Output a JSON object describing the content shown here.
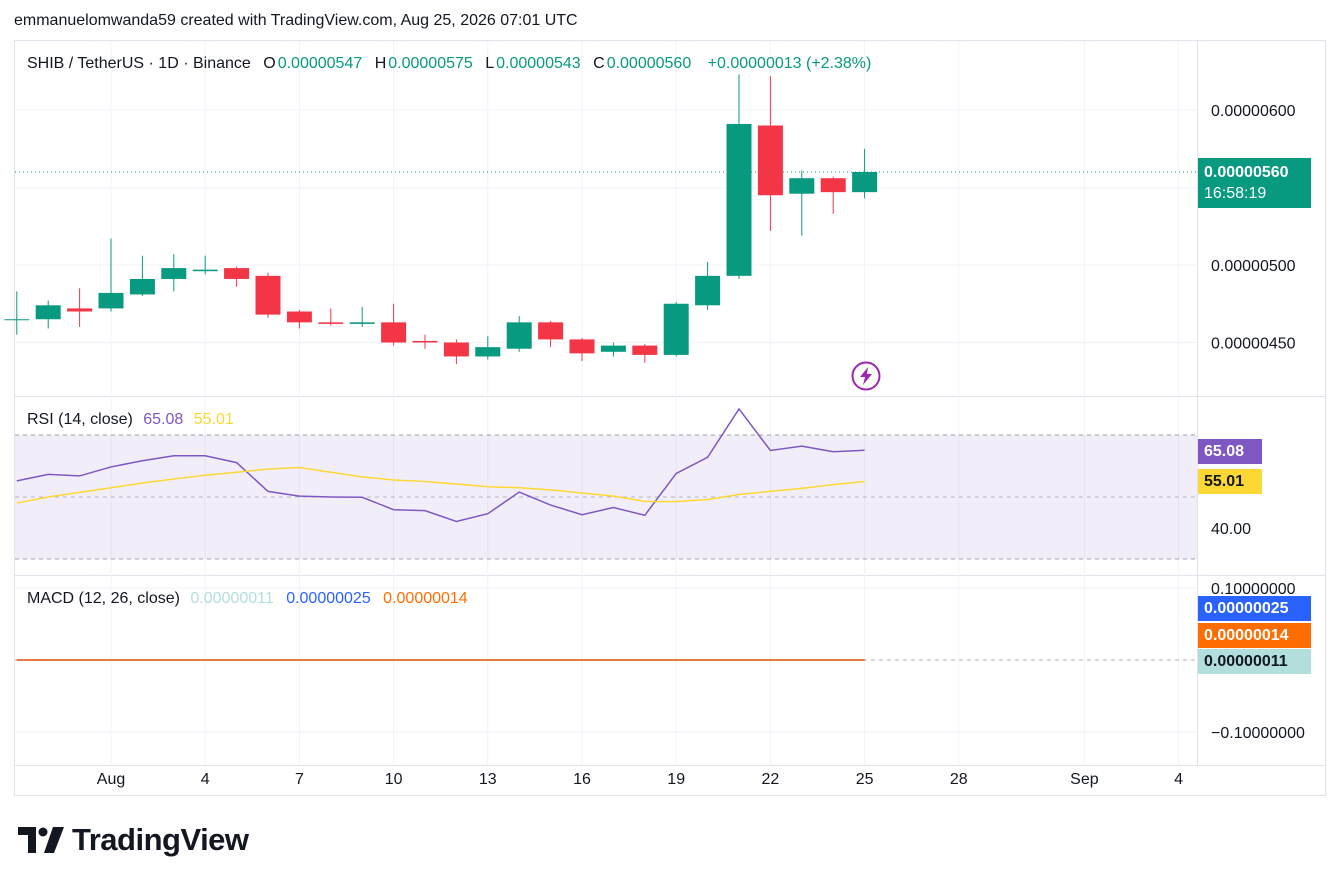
{
  "header": {
    "credit": "emmanuelomwanda59 created with TradingView.com, Aug 25, 2026 07:01 UTC"
  },
  "price_legend": {
    "symbol": "SHIB / TetherUS · 1D · Binance",
    "o_label": "O",
    "o": "0.00000547",
    "h_label": "H",
    "h": "0.00000575",
    "l_label": "L",
    "l": "0.00000543",
    "c_label": "C",
    "c": "0.00000560",
    "change": "+0.00000013 (+2.38%)"
  },
  "price_tag": {
    "value": "0.00000560",
    "countdown": "16:58:19"
  },
  "rsi_legend": {
    "title": "RSI (14, close)",
    "rsi": "65.08",
    "ma": "55.01"
  },
  "macd_legend": {
    "title": "MACD (12, 26, close)",
    "hist": "0.00000011",
    "macd": "0.00000025",
    "signal": "0.00000014"
  },
  "logo": {
    "text": "TradingView"
  },
  "colors": {
    "up": "#089981",
    "down": "#f23645",
    "rsi": "#7e57c2",
    "rsi_ma": "#fdd835",
    "macd": "#2962ff",
    "signal": "#ff6d00",
    "hist": "#b2dfdb",
    "lightning": "#9c27b0"
  },
  "chart_data": [
    {
      "type": "candlestick",
      "title": "SHIB / TetherUS · 1D · Binance",
      "x_ticks": [
        {
          "label": "Aug",
          "day": 1
        },
        {
          "label": "4",
          "day": 4
        },
        {
          "label": "7",
          "day": 7
        },
        {
          "label": "10",
          "day": 10
        },
        {
          "label": "13",
          "day": 13
        },
        {
          "label": "16",
          "day": 16
        },
        {
          "label": "19",
          "day": 19
        },
        {
          "label": "22",
          "day": 22
        },
        {
          "label": "25",
          "day": 25
        },
        {
          "label": "28",
          "day": 28
        },
        {
          "label": "Sep",
          "day": 32
        },
        {
          "label": "4",
          "day": 35
        }
      ],
      "y_ticks": [
        "0.00000600",
        "0.00000500",
        "0.00000450"
      ],
      "y_tick_values": [
        6e-06,
        5e-06,
        4.5e-06
      ],
      "ylim": [
        4.165e-06,
        6.345e-06
      ],
      "last_price": 5.6e-06,
      "candles": [
        {
          "day": -2,
          "o": 4.65e-06,
          "h": 4.83e-06,
          "l": 4.55e-06,
          "c": 4.65e-06
        },
        {
          "day": -1,
          "o": 4.65e-06,
          "h": 4.77e-06,
          "l": 4.59e-06,
          "c": 4.74e-06
        },
        {
          "day": 0,
          "o": 4.72e-06,
          "h": 4.85e-06,
          "l": 4.6e-06,
          "c": 4.7e-06
        },
        {
          "day": 1,
          "o": 4.72e-06,
          "h": 5.17e-06,
          "l": 4.7e-06,
          "c": 4.82e-06
        },
        {
          "day": 2,
          "o": 4.81e-06,
          "h": 5.06e-06,
          "l": 4.8e-06,
          "c": 4.91e-06
        },
        {
          "day": 3,
          "o": 4.91e-06,
          "h": 5.07e-06,
          "l": 4.83e-06,
          "c": 4.98e-06
        },
        {
          "day": 4,
          "o": 4.96e-06,
          "h": 5.06e-06,
          "l": 4.94e-06,
          "c": 4.97e-06
        },
        {
          "day": 5,
          "o": 4.98e-06,
          "h": 4.99e-06,
          "l": 4.86e-06,
          "c": 4.91e-06
        },
        {
          "day": 6,
          "o": 4.93e-06,
          "h": 4.95e-06,
          "l": 4.66e-06,
          "c": 4.68e-06
        },
        {
          "day": 7,
          "o": 4.7e-06,
          "h": 4.71e-06,
          "l": 4.59e-06,
          "c": 4.63e-06
        },
        {
          "day": 8,
          "o": 4.63e-06,
          "h": 4.72e-06,
          "l": 4.61e-06,
          "c": 4.62e-06
        },
        {
          "day": 9,
          "o": 4.62e-06,
          "h": 4.73e-06,
          "l": 4.6e-06,
          "c": 4.63e-06
        },
        {
          "day": 10,
          "o": 4.63e-06,
          "h": 4.75e-06,
          "l": 4.48e-06,
          "c": 4.5e-06
        },
        {
          "day": 11,
          "o": 4.51e-06,
          "h": 4.55e-06,
          "l": 4.46e-06,
          "c": 4.5e-06
        },
        {
          "day": 12,
          "o": 4.5e-06,
          "h": 4.52e-06,
          "l": 4.36e-06,
          "c": 4.41e-06
        },
        {
          "day": 13,
          "o": 4.41e-06,
          "h": 4.54e-06,
          "l": 4.39e-06,
          "c": 4.47e-06
        },
        {
          "day": 14,
          "o": 4.46e-06,
          "h": 4.67e-06,
          "l": 4.44e-06,
          "c": 4.63e-06
        },
        {
          "day": 15,
          "o": 4.63e-06,
          "h": 4.64e-06,
          "l": 4.47e-06,
          "c": 4.52e-06
        },
        {
          "day": 16,
          "o": 4.52e-06,
          "h": 4.53e-06,
          "l": 4.38e-06,
          "c": 4.43e-06
        },
        {
          "day": 17,
          "o": 4.44e-06,
          "h": 4.5e-06,
          "l": 4.41e-06,
          "c": 4.48e-06
        },
        {
          "day": 18,
          "o": 4.48e-06,
          "h": 4.49e-06,
          "l": 4.37e-06,
          "c": 4.42e-06
        },
        {
          "day": 19,
          "o": 4.42e-06,
          "h": 4.76e-06,
          "l": 4.41e-06,
          "c": 4.75e-06
        },
        {
          "day": 20,
          "o": 4.74e-06,
          "h": 5.02e-06,
          "l": 4.71e-06,
          "c": 4.93e-06
        },
        {
          "day": 21,
          "o": 4.93e-06,
          "h": 6.23e-06,
          "l": 4.91e-06,
          "c": 5.91e-06
        },
        {
          "day": 22,
          "o": 5.9e-06,
          "h": 6.22e-06,
          "l": 5.22e-06,
          "c": 5.45e-06
        },
        {
          "day": 23,
          "o": 5.46e-06,
          "h": 5.61e-06,
          "l": 5.19e-06,
          "c": 5.56e-06
        },
        {
          "day": 24,
          "o": 5.56e-06,
          "h": 5.57e-06,
          "l": 5.33e-06,
          "c": 5.47e-06
        },
        {
          "day": 25,
          "o": 5.47e-06,
          "h": 5.75e-06,
          "l": 5.43e-06,
          "c": 5.6e-06
        }
      ]
    },
    {
      "type": "line",
      "title": "RSI (14, close)",
      "y_ticks": [
        "40.00"
      ],
      "y_tick_values": [
        40
      ],
      "ylim": [
        26.4,
        82.6
      ],
      "band": [
        30,
        70
      ],
      "middle": 50,
      "series": [
        {
          "name": "RSI",
          "x": [
            -2,
            -1,
            0,
            1,
            2,
            3,
            4,
            5,
            6,
            7,
            8,
            9,
            10,
            11,
            12,
            13,
            14,
            15,
            16,
            17,
            18,
            19,
            20,
            21,
            22,
            23,
            24,
            25
          ],
          "values": [
            55.2,
            57.3,
            56.8,
            59.7,
            61.7,
            63.3,
            63.3,
            61.1,
            51.8,
            50.3,
            50.0,
            49.9,
            45.9,
            45.6,
            42.1,
            44.6,
            51.6,
            47.4,
            44.3,
            46.6,
            44.1,
            57.6,
            62.8,
            78.4,
            65.0,
            66.4,
            64.6,
            65.1
          ]
        },
        {
          "name": "MA",
          "x": [
            -2,
            -1,
            0,
            1,
            2,
            3,
            4,
            5,
            6,
            7,
            8,
            9,
            10,
            11,
            12,
            13,
            14,
            15,
            16,
            17,
            18,
            19,
            20,
            21,
            22,
            23,
            24,
            25
          ],
          "values": [
            48.0,
            50.0,
            51.5,
            53.0,
            54.5,
            55.8,
            57.0,
            58.0,
            59.0,
            59.5,
            58.0,
            56.5,
            55.5,
            55.0,
            54.2,
            53.3,
            53.0,
            52.3,
            51.3,
            50.3,
            48.6,
            48.5,
            49.2,
            50.8,
            51.8,
            52.8,
            54.0,
            55.0
          ]
        }
      ]
    },
    {
      "type": "line",
      "title": "MACD (12, 26, close)",
      "y_ticks": [
        "0.10000000",
        "−0.10000000"
      ],
      "y_tick_values": [
        0.1,
        -0.1
      ],
      "ylim": [
        -0.1,
        0.1
      ],
      "series": [
        {
          "name": "MACD",
          "x": [
            -2,
            25
          ],
          "values": [
            2.5e-07,
            2.5e-07
          ]
        },
        {
          "name": "Signal",
          "x": [
            -2,
            25
          ],
          "values": [
            1.4e-07,
            1.4e-07
          ]
        }
      ]
    }
  ]
}
